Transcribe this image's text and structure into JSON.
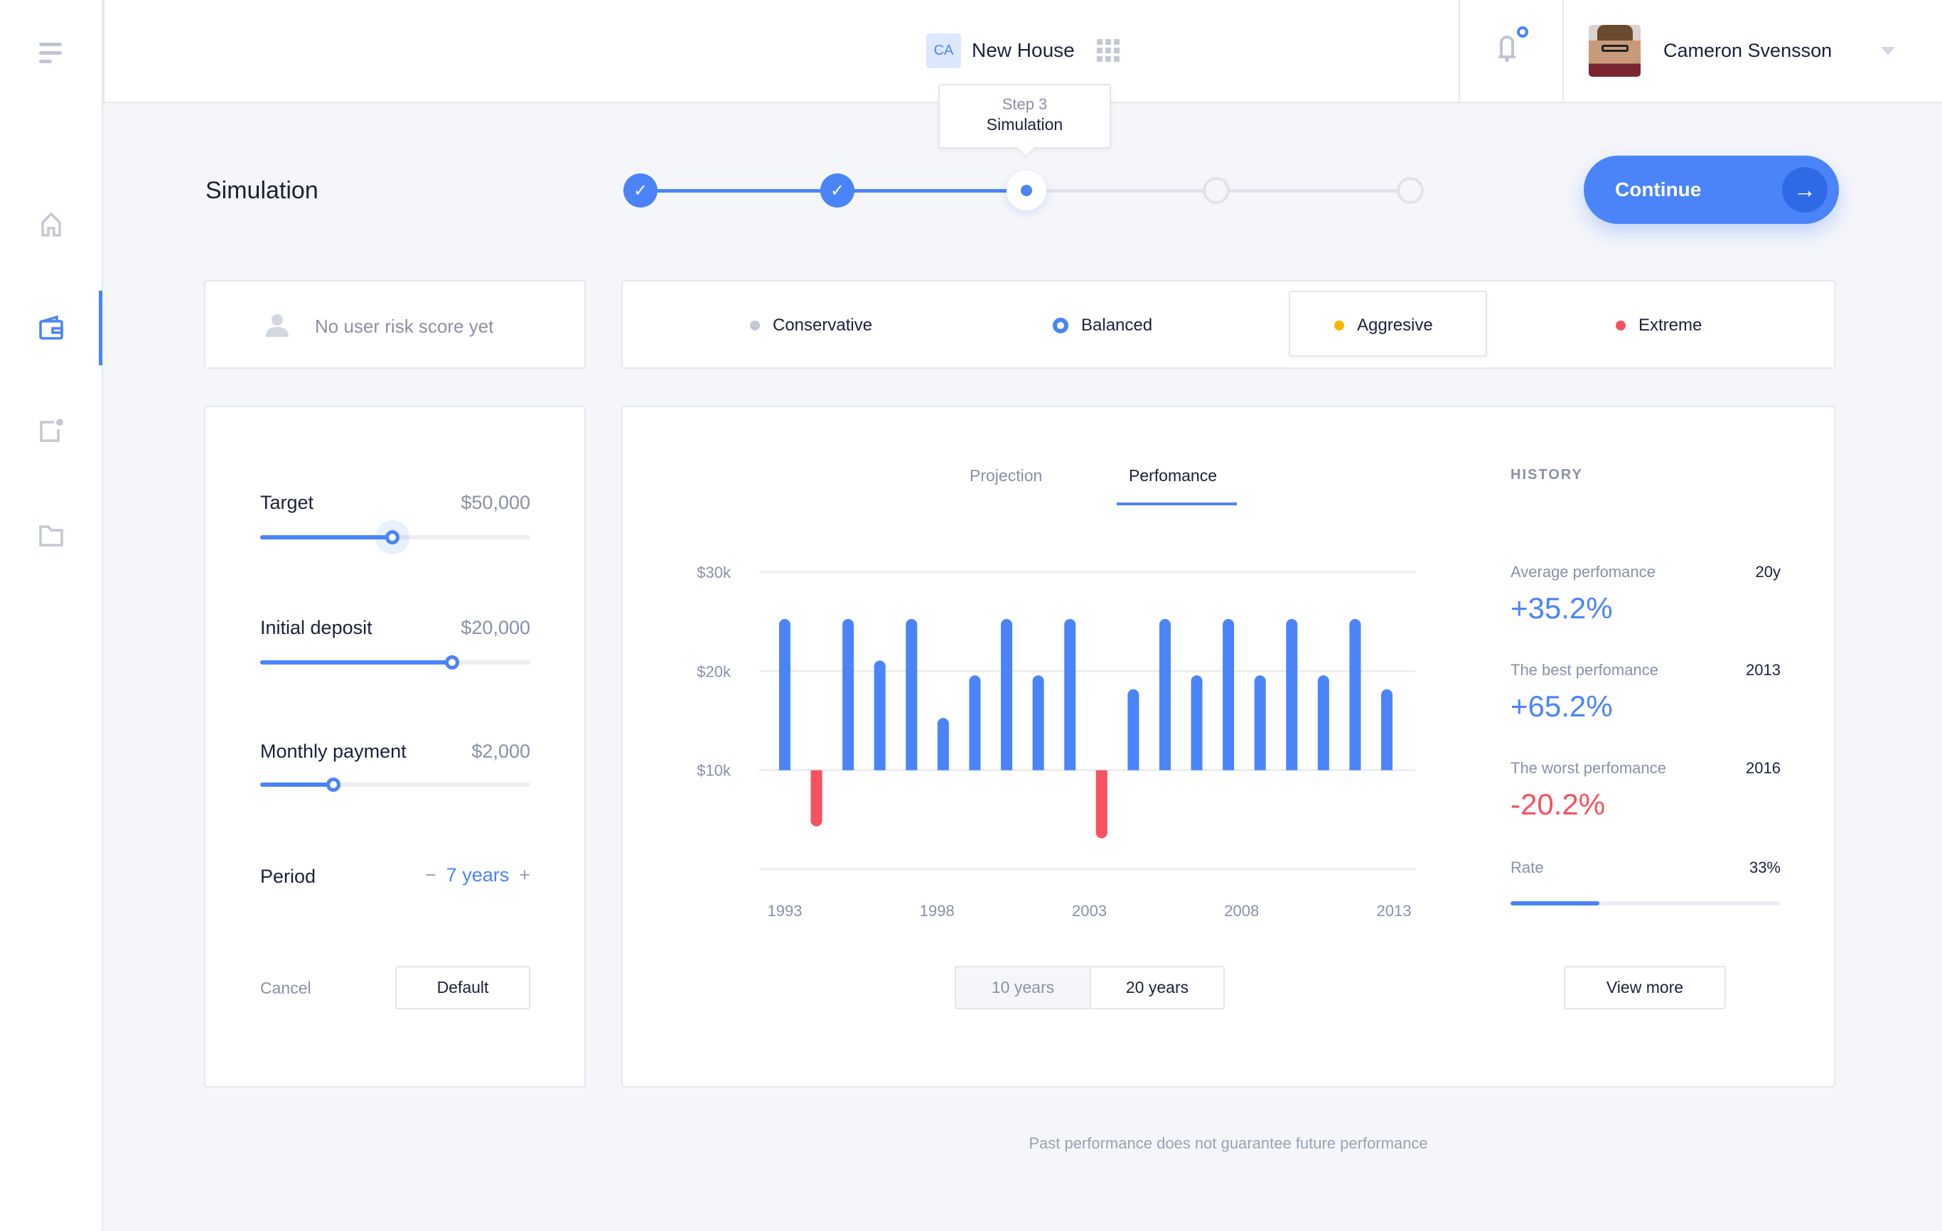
{
  "header": {
    "project_badge": "CA",
    "project_name": "New House",
    "user_name": "Cameron Svensson"
  },
  "stepper": {
    "tooltip_step": "Step 3",
    "tooltip_name": "Simulation",
    "current_step": 3,
    "total_steps": 5
  },
  "page": {
    "title": "Simulation",
    "continue_label": "Continue",
    "footer_note": "Past performance does not guarantee future performance"
  },
  "risk": {
    "no_score": "No user risk score yet",
    "options": [
      {
        "label": "Conservative",
        "color": "#c3c8d3"
      },
      {
        "label": "Balanced",
        "color": "#4a84f8"
      },
      {
        "label": "Aggresive",
        "color": "#f5b800",
        "selected": true
      },
      {
        "label": "Extreme",
        "color": "#f5515f"
      }
    ]
  },
  "inputs": {
    "target": {
      "label": "Target",
      "value": "$50,000",
      "level": 0.49
    },
    "deposit": {
      "label": "Initial deposit",
      "value": "$20,000",
      "level": 0.71
    },
    "monthly": {
      "label": "Monthly payment",
      "value": "$2,000",
      "level": 0.27
    },
    "period": {
      "label": "Period",
      "minus": "−",
      "value": "7 years",
      "plus": "+"
    },
    "cancel": "Cancel",
    "default": "Default"
  },
  "tabs": {
    "projection": "Projection",
    "performance": "Perfomance",
    "active": "performance"
  },
  "range_buttons": {
    "ten": "10 years",
    "twenty": "20 years"
  },
  "chart_data": {
    "type": "bar",
    "categories": [
      "1993",
      "1994",
      "1995",
      "1996",
      "1997",
      "1998",
      "1999",
      "2000",
      "2001",
      "2002",
      "2003",
      "2004",
      "2005",
      "2006",
      "2007",
      "2008",
      "2009",
      "2010",
      "2011",
      "2012"
    ],
    "values": [
      24.7,
      4.9,
      24.7,
      20.5,
      24.7,
      14.7,
      19,
      24.7,
      19,
      24.7,
      3.7,
      17.6,
      24.7,
      19,
      24.7,
      19,
      24.7,
      19,
      24.7,
      17.6
    ],
    "baseline": 10,
    "ylim": [
      0,
      30
    ],
    "y_ticks": [
      {
        "v": 30,
        "label": "$30k"
      },
      {
        "v": 20,
        "label": "$20k"
      },
      {
        "v": 10,
        "label": "$10k"
      },
      {
        "v": 0,
        "label": ""
      }
    ],
    "x_ticks": [
      "1993",
      "1998",
      "2003",
      "2008",
      "2013"
    ],
    "positive_color": "#4a84f8",
    "negative_color": "#f5515f",
    "grid": true
  },
  "history": {
    "title": "HISTORY",
    "average": {
      "label": "Average perfomance",
      "period": "20y",
      "value": "+35.2%"
    },
    "best": {
      "label": "The best perfomance",
      "year": "2013",
      "value": "+65.2%"
    },
    "worst": {
      "label": "The worst perfomance",
      "year": "2016",
      "value": "-20.2%"
    },
    "rate": {
      "label": "Rate",
      "value": "33%",
      "percent": 33
    },
    "view_more": "View more"
  }
}
